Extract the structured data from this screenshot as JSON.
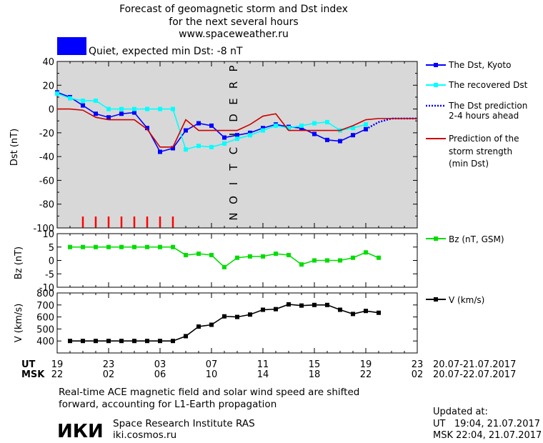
{
  "header": {
    "title_lines": [
      "Forecast of geomagnetic storm and Dst index",
      "for the next several hours",
      "www.spaceweather.ru"
    ],
    "status_label": "Quiet, expected min Dst: -8 nT",
    "status_color": "#0000ff"
  },
  "colors": {
    "dst_kyoto": "#0000ff",
    "dst_recovered": "#00ffff",
    "dst_prediction": "#0000ff",
    "storm_strength": "#cc0000",
    "bz": "#00dd00",
    "v": "#000000",
    "prediction_shade": "#d8d8d8"
  },
  "chart_data": [
    {
      "type": "line",
      "name": "dst-panel",
      "ylabel": "Dst (nT)",
      "ylim": [
        -100,
        40
      ],
      "yticks": [
        "40",
        "20",
        "0",
        "-20",
        "-40",
        "-60",
        "-80",
        "-100"
      ],
      "ytick_values": [
        40,
        20,
        0,
        -20,
        -40,
        -60,
        -80,
        -100
      ],
      "prediction_label": [
        "P",
        "R",
        "E",
        "D",
        "I",
        "C",
        "T",
        "I",
        "O",
        "N"
      ],
      "prediction_start_hour": 19,
      "series": [
        {
          "name": "The Dst, Kyoto",
          "x": [
            19,
            20,
            21,
            22,
            23,
            24,
            25,
            26,
            27,
            28,
            29,
            30,
            31,
            32,
            33,
            34,
            35,
            36,
            37,
            38,
            39,
            40,
            41,
            42,
            43
          ],
          "values": [
            14,
            10,
            3,
            -4,
            -7,
            -4,
            -3,
            -16,
            -36,
            -33,
            -18,
            -12,
            -14,
            -24,
            -22,
            -20,
            -16,
            -13,
            -15,
            -16,
            -21,
            -26,
            -27,
            -22,
            -17
          ]
        },
        {
          "name": "The recovered Dst",
          "x": [
            19,
            20,
            21,
            22,
            23,
            24,
            25,
            26,
            27,
            28,
            29,
            30,
            31,
            32,
            33,
            34,
            35,
            36,
            37,
            38,
            39,
            40,
            41,
            42,
            43
          ],
          "values": [
            13,
            9,
            7,
            7,
            0,
            0,
            0,
            0,
            0,
            0,
            -34,
            -31,
            -32,
            -29,
            -25,
            -22,
            -18,
            -14,
            -16,
            -14,
            -12,
            -11,
            -18,
            -16,
            -13
          ]
        },
        {
          "name": "The Dst prediction",
          "label_lines": [
            "The Dst prediction",
            "2-4 hours ahead"
          ],
          "x": [
            43,
            44,
            45,
            46,
            47
          ],
          "values": [
            -17,
            -11,
            -8,
            -8,
            -8
          ]
        },
        {
          "name": "Prediction of the storm strength",
          "label_lines": [
            "Prediction of the",
            "storm strength",
            "(min Dst)"
          ],
          "x": [
            19,
            20,
            21,
            22,
            23,
            24,
            25,
            26,
            27,
            28,
            29,
            30,
            31,
            32,
            33,
            34,
            35,
            36,
            37,
            38,
            39,
            40,
            41,
            42,
            43,
            44,
            45,
            46,
            47
          ],
          "values": [
            0,
            0,
            -1,
            -7,
            -9,
            -9,
            -9,
            -17,
            -32,
            -32,
            -9,
            -18,
            -18,
            -18,
            -18,
            -13,
            -6,
            -4,
            -18,
            -18,
            -18,
            -18,
            -18,
            -14,
            -9,
            -8,
            -8,
            -8,
            -8
          ]
        }
      ],
      "markers": {
        "x": [
          21,
          22,
          23,
          24,
          25,
          26,
          27,
          28
        ],
        "color": "#ff0000"
      }
    },
    {
      "type": "line",
      "name": "bz-panel",
      "ylabel": "Bz (nT)",
      "ylim": [
        -10,
        10
      ],
      "yticks": [
        "10",
        "5",
        "0",
        "-5",
        "-10"
      ],
      "ytick_values": [
        10,
        5,
        0,
        -5,
        -10
      ],
      "series": [
        {
          "name": "Bz (nT, GSM)",
          "x": [
            20,
            21,
            22,
            23,
            24,
            25,
            26,
            27,
            28,
            29,
            30,
            31,
            32,
            33,
            34,
            35,
            36,
            37,
            38,
            39,
            40,
            41,
            42,
            43,
            44
          ],
          "values": [
            5,
            5,
            5,
            5,
            5,
            5,
            5,
            5,
            5,
            2,
            2.5,
            2,
            -2.5,
            1,
            1.5,
            1.5,
            2.5,
            2,
            -1.5,
            0,
            0,
            0,
            1,
            3,
            1
          ]
        }
      ]
    },
    {
      "type": "line",
      "name": "v-panel",
      "ylabel": "V (km/s)",
      "ylim": [
        300,
        800
      ],
      "yticks": [
        "800",
        "700",
        "600",
        "500",
        "400"
      ],
      "ytick_values": [
        800,
        700,
        600,
        500,
        400
      ],
      "series": [
        {
          "name": "V (km/s)",
          "x": [
            20,
            21,
            22,
            23,
            24,
            25,
            26,
            27,
            28,
            29,
            30,
            31,
            32,
            33,
            34,
            35,
            36,
            37,
            38,
            39,
            40,
            41,
            42,
            43,
            44
          ],
          "values": [
            400,
            400,
            400,
            400,
            400,
            400,
            400,
            400,
            400,
            440,
            520,
            535,
            605,
            600,
            620,
            660,
            665,
            705,
            695,
            700,
            700,
            660,
            625,
            650,
            635
          ]
        }
      ]
    }
  ],
  "xaxis": {
    "xlim": [
      19,
      47
    ],
    "tick_hours": [
      19,
      23,
      27,
      31,
      35,
      39,
      43,
      47
    ],
    "ut_label": "UT",
    "msk_label": "MSK",
    "ut_ticks": [
      "19",
      "23",
      "03",
      "07",
      "11",
      "15",
      "19",
      "23"
    ],
    "msk_ticks": [
      "22",
      "02",
      "06",
      "10",
      "14",
      "18",
      "22",
      "02"
    ],
    "ut_range": "20.07-21.07.2017",
    "msk_range": "20.07-22.07.2017"
  },
  "footer": {
    "note_lines": [
      "Real-time ACE magnetic field and solar wind speed are shifted",
      "forward, accounting for L1-Earth propagation"
    ],
    "logo_text": "ИКИ",
    "institute": "Space Research Institute RAS",
    "site": "iki.cosmos.ru",
    "updated_label": "Updated at:",
    "updated_ut": "UT   19:04, 21.07.2017",
    "updated_msk": "MSK 22:04, 21.07.2017"
  }
}
